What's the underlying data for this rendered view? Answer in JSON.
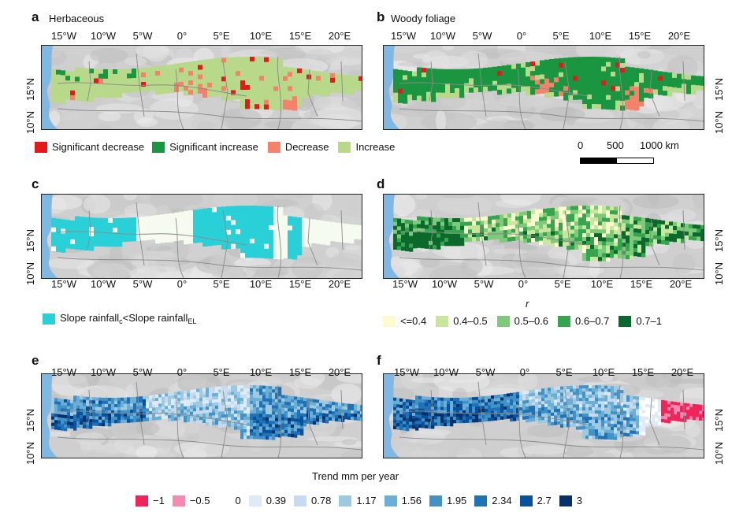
{
  "panels": {
    "a": {
      "letter": "a",
      "title": "Herbaceous"
    },
    "b": {
      "letter": "b",
      "title": "Woody foliage"
    },
    "c": {
      "letter": "c",
      "title": ""
    },
    "d": {
      "letter": "d",
      "title": ""
    },
    "e": {
      "letter": "e",
      "title": ""
    },
    "f": {
      "letter": "f",
      "title": ""
    }
  },
  "lon_ticks": [
    "15°W",
    "10°W",
    "5°W",
    "0°",
    "5°E",
    "10°E",
    "15°E",
    "20°E"
  ],
  "lat_ticks": [
    "10°N",
    "15°N"
  ],
  "legend_ab": [
    {
      "label": "Significant decrease",
      "color": "#e31a1c"
    },
    {
      "label": "Significant increase",
      "color": "#1a9641"
    },
    {
      "label": "Decrease",
      "color": "#f4826b"
    },
    {
      "label": "Increase",
      "color": "#b8d98a"
    }
  ],
  "scalebar": {
    "labels": [
      "0",
      "500",
      "1000 km"
    ]
  },
  "legend_c": {
    "color": "#29d0d8",
    "text_main": "Slope rainfall",
    "sub1": "c",
    "mid": "<Slope rainfall",
    "sub2": "EL"
  },
  "legend_d": {
    "title": "r",
    "items": [
      {
        "label": "<=0.4",
        "color": "#fbfbcf"
      },
      {
        "label": "0.4–0.5",
        "color": "#c8e79c"
      },
      {
        "label": "0.5–0.6",
        "color": "#7fc97a"
      },
      {
        "label": "0.6–0.7",
        "color": "#37a54f"
      },
      {
        "label": "0.7–1",
        "color": "#0b6a2b"
      }
    ]
  },
  "legend_ef": {
    "title": "Trend mm per year",
    "items": [
      {
        "label": "−1",
        "color": "#f0245a"
      },
      {
        "label": "−0.5",
        "color": "#f78ab1"
      },
      {
        "label": "0",
        "color": "#ffffff"
      },
      {
        "label": "0.39",
        "color": "#deebf7"
      },
      {
        "label": "0.78",
        "color": "#c6dbef"
      },
      {
        "label": "1.17",
        "color": "#9ecae1"
      },
      {
        "label": "1.56",
        "color": "#6baed6"
      },
      {
        "label": "1.95",
        "color": "#4292c6"
      },
      {
        "label": "2.34",
        "color": "#2171b5"
      },
      {
        "label": "2.7",
        "color": "#08519c"
      },
      {
        "label": "3",
        "color": "#08306b"
      }
    ]
  }
}
